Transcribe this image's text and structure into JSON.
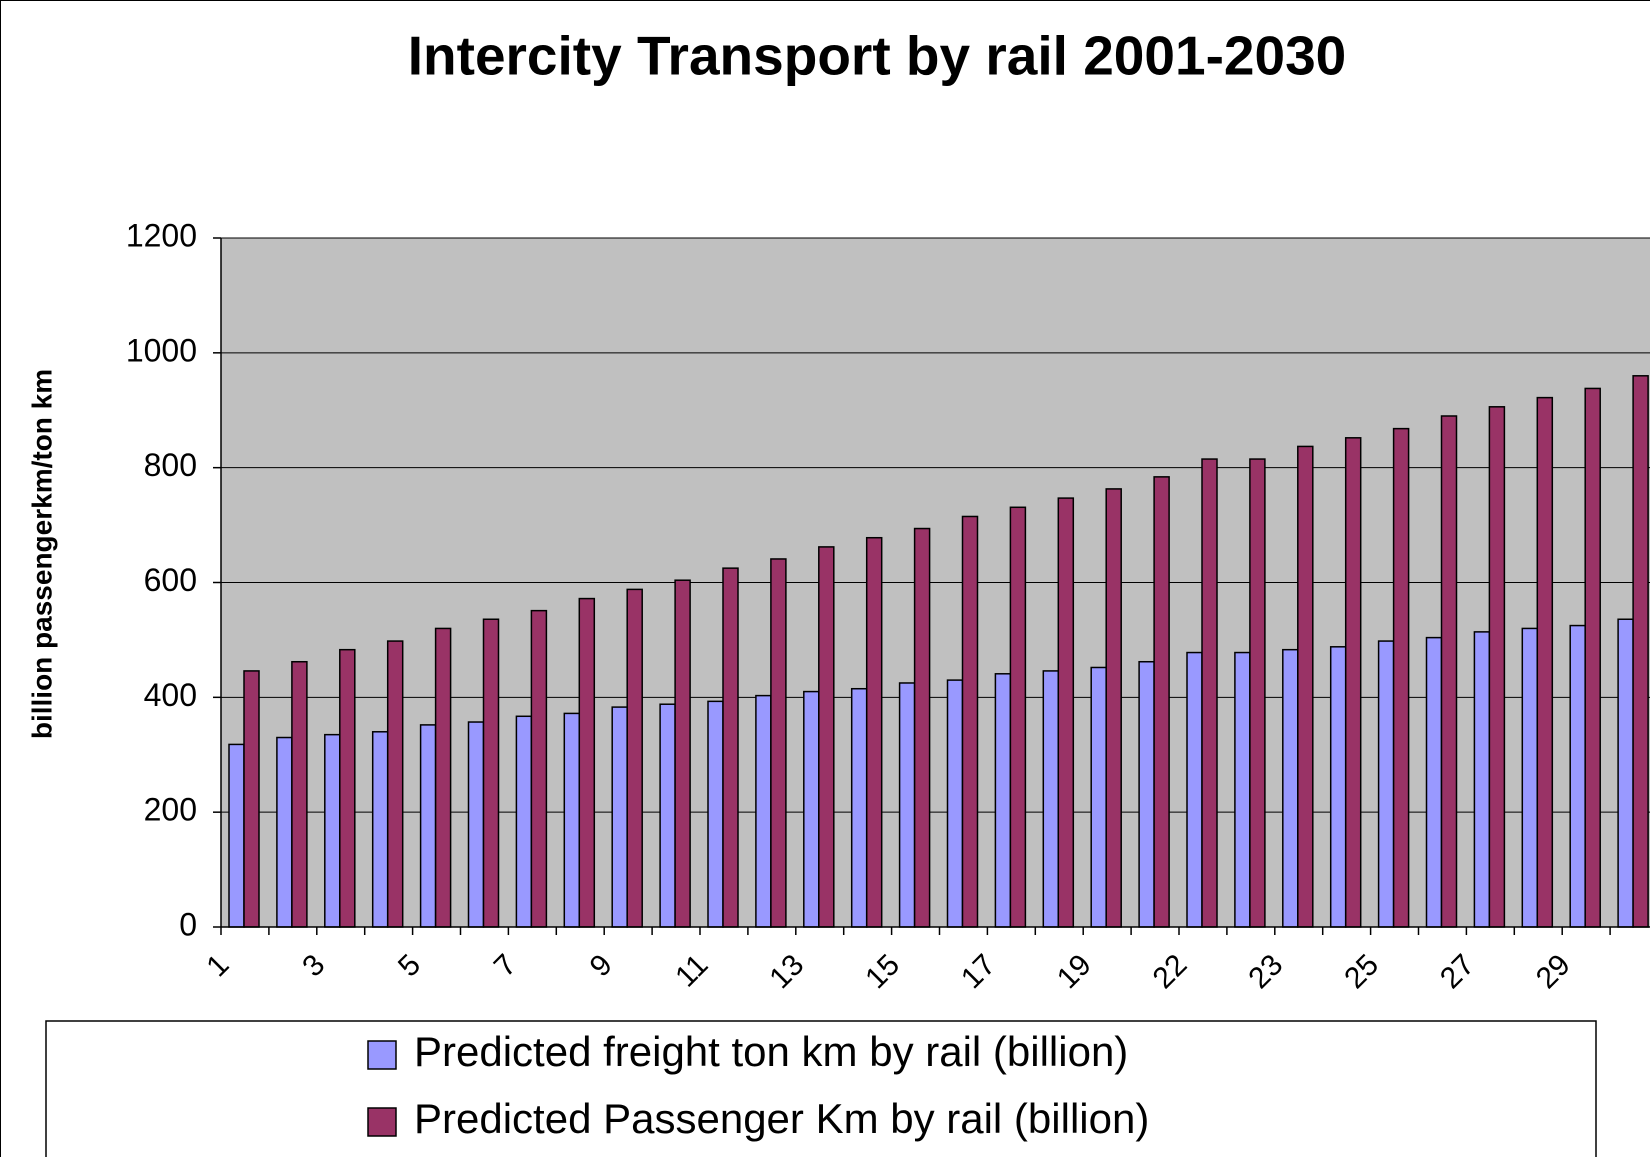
{
  "chart_data": {
    "type": "bar",
    "title": "Intercity Transport by rail 2001-2030",
    "y_label": "billion passengerkm/ton km",
    "categories": [
      "1",
      null,
      "3",
      null,
      "5",
      null,
      "7",
      null,
      "9",
      null,
      "11",
      null,
      "13",
      null,
      "15",
      null,
      "17",
      null,
      "19",
      null,
      "22",
      null,
      "23",
      null,
      "25",
      null,
      "27",
      null,
      "29",
      null
    ],
    "series": [
      {
        "name": "Predicted freight ton km by rail (billion)",
        "color": "#9999ff",
        "values": [
          318,
          330,
          335,
          340,
          352,
          357,
          367,
          372,
          383,
          388,
          393,
          403,
          410,
          415,
          425,
          430,
          441,
          446,
          452,
          462,
          478,
          478,
          483,
          488,
          498,
          504,
          514,
          520,
          525,
          536
        ]
      },
      {
        "name": "Predicted Passenger Km by rail (billion)",
        "color": "#993366",
        "values": [
          446,
          462,
          483,
          498,
          520,
          536,
          551,
          572,
          588,
          604,
          625,
          641,
          662,
          678,
          694,
          715,
          731,
          747,
          763,
          784,
          815,
          815,
          837,
          852,
          868,
          890,
          906,
          922,
          938,
          960
        ]
      }
    ],
    "ylim": [
      0,
      1200
    ],
    "yticks": [
      0,
      200,
      400,
      600,
      800,
      1000,
      1200
    ],
    "grid": true,
    "plot_background": "#c0c0c0",
    "legend": "bottom"
  }
}
